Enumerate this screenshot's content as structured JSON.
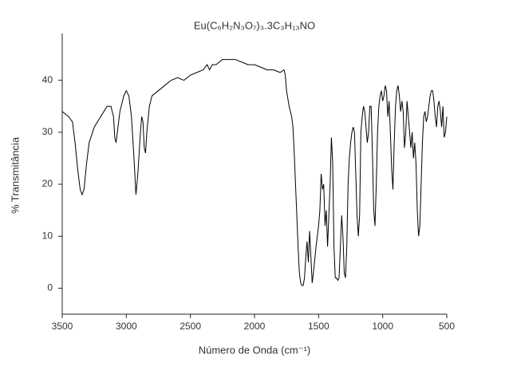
{
  "chart_data": {
    "type": "line",
    "title": "Eu(C₆H₂N₃O₇)₃.3C₃H₁₃NO",
    "xlabel": "Número de Onda (cm⁻¹)",
    "ylabel": "% Transmitância",
    "color": "#000000",
    "xlim": [
      3500,
      500
    ],
    "xticks": [
      3500,
      3000,
      2500,
      2000,
      1500,
      1000,
      500
    ],
    "ylim": [
      -5,
      49
    ],
    "yticks": [
      0,
      10,
      20,
      30,
      40
    ],
    "x": [
      3500,
      3450,
      3420,
      3400,
      3380,
      3360,
      3345,
      3330,
      3310,
      3290,
      3250,
      3200,
      3150,
      3120,
      3100,
      3090,
      3080,
      3070,
      3050,
      3020,
      3000,
      2980,
      2960,
      2940,
      2925,
      2910,
      2890,
      2880,
      2870,
      2860,
      2850,
      2840,
      2820,
      2800,
      2750,
      2700,
      2650,
      2600,
      2550,
      2500,
      2450,
      2400,
      2370,
      2350,
      2330,
      2300,
      2250,
      2200,
      2150,
      2100,
      2050,
      2000,
      1950,
      1900,
      1850,
      1800,
      1770,
      1760,
      1750,
      1730,
      1710,
      1700,
      1690,
      1680,
      1670,
      1660,
      1650,
      1640,
      1630,
      1620,
      1610,
      1600,
      1590,
      1580,
      1570,
      1560,
      1550,
      1540,
      1520,
      1500,
      1490,
      1480,
      1470,
      1460,
      1450,
      1440,
      1430,
      1420,
      1410,
      1400,
      1390,
      1380,
      1370,
      1360,
      1350,
      1340,
      1330,
      1320,
      1310,
      1300,
      1290,
      1280,
      1270,
      1260,
      1250,
      1240,
      1230,
      1220,
      1210,
      1200,
      1190,
      1180,
      1170,
      1160,
      1150,
      1140,
      1130,
      1120,
      1110,
      1100,
      1090,
      1080,
      1070,
      1060,
      1050,
      1040,
      1030,
      1020,
      1010,
      1000,
      990,
      980,
      970,
      960,
      950,
      940,
      930,
      920,
      910,
      900,
      890,
      880,
      870,
      860,
      850,
      840,
      830,
      820,
      810,
      800,
      790,
      780,
      770,
      760,
      750,
      740,
      730,
      720,
      710,
      700,
      690,
      680,
      670,
      660,
      650,
      640,
      630,
      620,
      610,
      600,
      590,
      580,
      570,
      560,
      550,
      540,
      530,
      520,
      510,
      500
    ],
    "values": [
      34,
      33,
      32,
      28,
      23,
      19,
      18,
      19,
      24,
      28,
      31,
      33,
      35,
      35,
      33,
      29,
      28,
      30,
      34,
      37,
      38,
      37,
      33,
      25,
      18,
      22,
      30,
      33,
      32,
      27,
      26,
      30,
      35,
      37,
      38,
      39,
      40,
      40.5,
      40,
      41,
      41.5,
      42,
      43,
      42,
      43,
      43,
      44,
      44,
      44,
      43.5,
      43,
      43,
      42.5,
      42,
      42,
      41.5,
      42,
      41,
      38,
      35,
      33,
      31,
      26,
      20,
      14,
      8,
      3,
      1,
      0.5,
      0.5,
      2,
      6,
      9,
      5,
      11,
      6,
      1,
      3,
      8,
      12,
      15,
      22,
      19,
      20,
      12,
      15,
      8,
      14,
      20,
      29,
      24,
      8,
      2,
      2,
      1.5,
      2,
      8,
      14,
      10,
      3,
      2,
      8,
      20,
      25,
      28,
      30,
      31,
      30,
      22,
      14,
      10,
      14,
      30,
      33,
      35,
      34,
      31,
      28,
      30,
      35,
      35,
      26,
      15,
      12,
      20,
      30,
      35,
      37,
      38,
      36,
      37,
      39,
      38,
      33,
      36,
      30,
      23,
      19,
      28,
      35,
      38,
      39,
      37,
      34,
      36,
      34,
      27,
      30,
      36,
      33,
      30,
      27,
      30,
      25,
      28,
      24,
      15,
      10,
      12,
      20,
      28,
      33,
      34,
      32,
      33,
      35,
      37,
      38,
      38,
      36,
      33,
      31,
      35,
      36,
      34,
      31,
      35,
      29,
      30,
      33
    ]
  }
}
